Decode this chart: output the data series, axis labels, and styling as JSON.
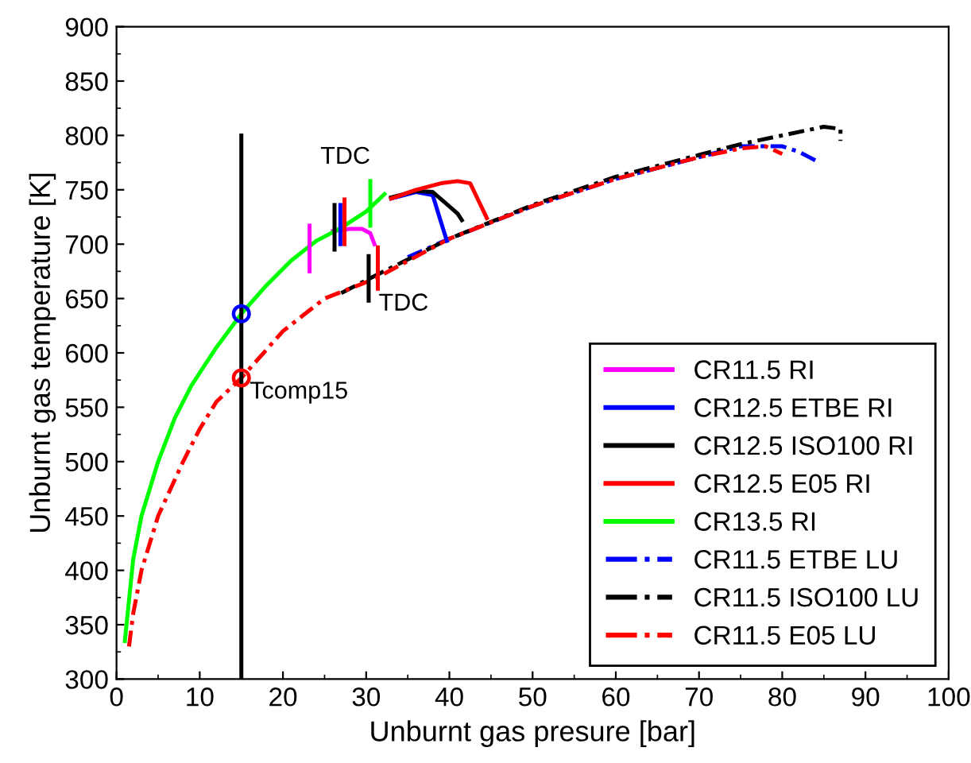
{
  "chart_data": {
    "type": "line",
    "xlabel": "Unburnt gas presure [bar]",
    "ylabel": "Unburnt gas temperature [K]",
    "xlim": [
      0,
      100
    ],
    "xticks": [
      0,
      10,
      20,
      30,
      40,
      50,
      60,
      70,
      80,
      90,
      100
    ],
    "ylim": [
      300,
      900
    ],
    "yticks": [
      300,
      350,
      400,
      450,
      500,
      550,
      600,
      650,
      700,
      750,
      800,
      850,
      900
    ],
    "grid": false,
    "legend": "bottom right",
    "marker": "none",
    "series": [
      {
        "name": "CR11.5 RI",
        "color": "#ff00ff",
        "line_style": "solid",
        "x": [
          26,
          28,
          29.5,
          30.5,
          31
        ],
        "values": [
          712,
          714,
          714,
          710,
          700
        ]
      },
      {
        "name": "CR12.5 ETBE RI",
        "color": "#0000ff",
        "line_style": "solid",
        "x": [
          33,
          36,
          38,
          39,
          39.7
        ],
        "values": [
          742,
          748,
          745,
          720,
          703
        ]
      },
      {
        "name": "CR12.5 ISO100 RI",
        "color": "#000000",
        "line_style": "solid",
        "x": [
          33,
          36,
          38,
          39.5,
          41,
          41.5
        ],
        "values": [
          743,
          749,
          748,
          738,
          728,
          722
        ]
      },
      {
        "name": "CR12.5 E05 RI",
        "color": "#ff0000",
        "line_style": "solid",
        "x": [
          33,
          36,
          39,
          41,
          42.5,
          43.5,
          44.5
        ],
        "values": [
          742,
          750,
          756,
          758,
          756,
          740,
          724
        ]
      },
      {
        "name": "CR13.5 RI",
        "color": "#00ff00",
        "line_style": "solid",
        "x": [
          1,
          2,
          3,
          5,
          7,
          9,
          12,
          15,
          18,
          21,
          24,
          27,
          30,
          32.2
        ],
        "values": [
          335,
          410,
          450,
          500,
          540,
          570,
          605,
          636,
          662,
          685,
          703,
          715,
          730,
          746
        ]
      },
      {
        "name": "CR11.5 ETBE LU",
        "color": "#0000ff",
        "line_style": "dashdot",
        "x": [
          35,
          40,
          50,
          60,
          70,
          75,
          80,
          82,
          84
        ],
        "values": [
          688,
          705,
          735,
          760,
          780,
          790,
          790,
          785,
          777
        ]
      },
      {
        "name": "CR11.5 ISO100 LU",
        "color": "#000000",
        "line_style": "dashdot",
        "x": [
          27,
          30.3,
          40,
          50,
          60,
          70,
          75,
          80,
          85,
          87,
          87
        ],
        "values": [
          655,
          668,
          705,
          736,
          762,
          782,
          792,
          800,
          808,
          806,
          795
        ]
      },
      {
        "name": "CR11.5 E05 LU",
        "color": "#ff0000",
        "line_style": "dashdot",
        "x": [
          1.5,
          2,
          3,
          5,
          8,
          10,
          12,
          15,
          20,
          25,
          31,
          40,
          45,
          50,
          60,
          70,
          75,
          78,
          80
        ],
        "values": [
          330,
          360,
          400,
          450,
          500,
          530,
          555,
          577,
          620,
          650,
          668,
          705,
          720,
          735,
          760,
          780,
          788,
          790,
          783
        ]
      },
      {
        "color": "#000000",
        "line_style": "solid",
        "x": [
          15,
          15
        ],
        "values": [
          300,
          800
        ]
      },
      {
        "color": "#ff00ff",
        "line_style": "solid",
        "x": [
          23.2,
          23.2
        ],
        "values": [
          675,
          717
        ]
      },
      {
        "color": "#000000",
        "line_style": "solid",
        "x": [
          26.2,
          26.2
        ],
        "values": [
          695,
          736
        ]
      },
      {
        "color": "#0000ff",
        "line_style": "solid",
        "x": [
          26.9,
          26.9
        ],
        "values": [
          700,
          736
        ]
      },
      {
        "color": "#ff0000",
        "line_style": "solid",
        "x": [
          27.4,
          27.4
        ],
        "values": [
          700,
          741
        ]
      },
      {
        "color": "#00ff00",
        "line_style": "solid",
        "x": [
          30.5,
          30.5
        ],
        "values": [
          717,
          758
        ]
      },
      {
        "color": "#000000",
        "line_style": "solid",
        "x": [
          30.3,
          30.3
        ],
        "values": [
          648,
          689
        ]
      },
      {
        "color": "#ff0000",
        "line_style": "solid",
        "x": [
          31.4,
          31.4
        ],
        "values": [
          659,
          697
        ]
      },
      {
        "type": "scatter",
        "marker": "circle",
        "color": "#0000ff",
        "x": [
          15
        ],
        "values": [
          636
        ]
      },
      {
        "type": "scatter",
        "marker": "circle",
        "color": "#ff0000",
        "x": [
          15
        ],
        "values": [
          577
        ]
      }
    ],
    "annotations": [
      "TDC",
      "TDC",
      "Tcomp15"
    ]
  }
}
